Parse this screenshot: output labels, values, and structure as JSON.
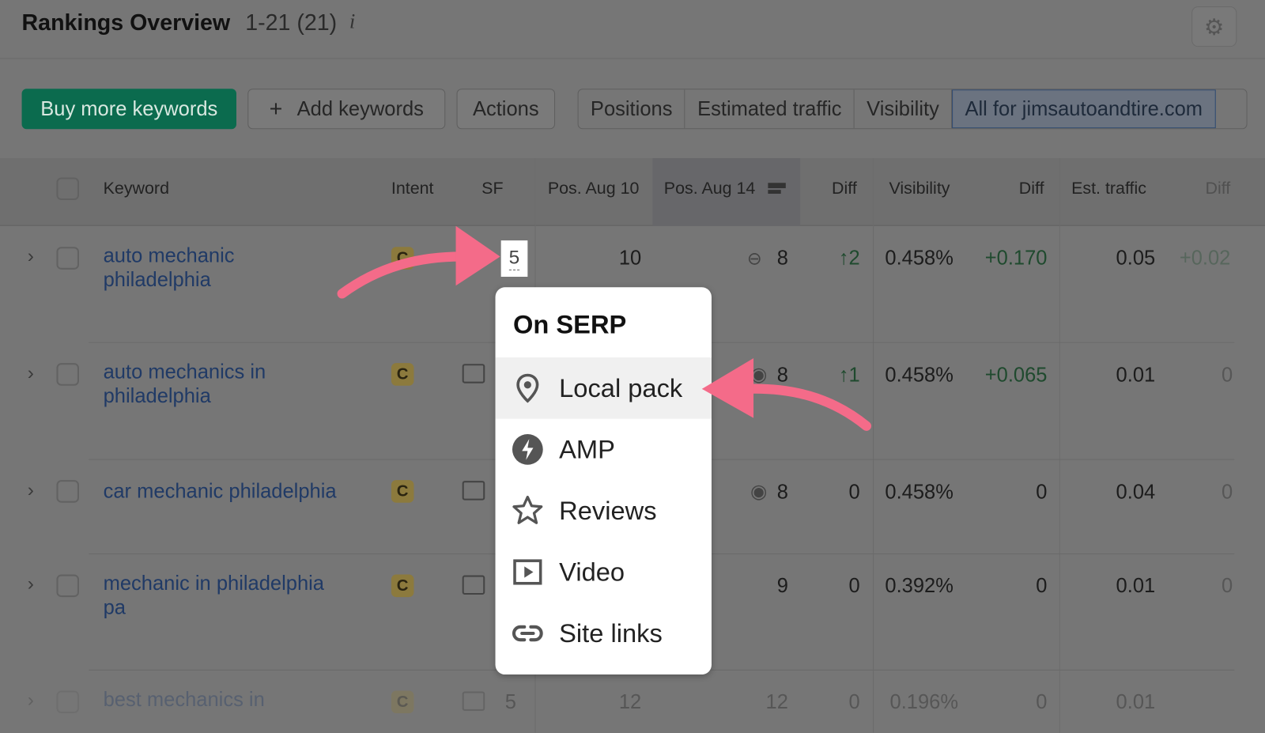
{
  "header": {
    "title": "Rankings Overview",
    "range": "1-21 (21)",
    "info_icon": "i",
    "settings_icon": "gear-icon"
  },
  "toolbar": {
    "buy": "Buy more keywords",
    "add": "Add keywords",
    "add_icon": "+",
    "actions": "Actions",
    "view_tabs": [
      "Positions",
      "Estimated traffic",
      "Visibility",
      "All for jimsautoandtire.com"
    ],
    "selected_tab": "All for jimsautoandtire.com"
  },
  "columns": {
    "keyword": "Keyword",
    "intent": "Intent",
    "sf": "SF",
    "pos1": "Pos. Aug 10",
    "pos2": "Pos. Aug 14",
    "diff": "Diff",
    "visibility": "Visibility",
    "vis_diff": "Diff",
    "traffic": "Est. traffic",
    "traffic_diff": "Diff"
  },
  "rows": [
    {
      "keyword": "auto mechanic philadelphia",
      "intent": "C",
      "sf": "5",
      "pos1": "10",
      "pos2": "8",
      "pos2_icon": "link-icon",
      "diff": "↑2",
      "visibility": "0.458%",
      "vis_diff": "+0.170",
      "traffic": "0.05",
      "traffic_diff": "+0.02"
    },
    {
      "keyword": "auto mechanics in philadelphia",
      "intent": "C",
      "pos2": "8",
      "pos2_icon": "location-pin-icon",
      "diff": "↑1",
      "visibility": "0.458%",
      "vis_diff": "+0.065",
      "traffic": "0.01",
      "traffic_diff": "0"
    },
    {
      "keyword": "car mechanic philadelphia",
      "intent": "C",
      "pos2": "8",
      "pos2_icon": "location-pin-icon",
      "diff": "0",
      "visibility": "0.458%",
      "vis_diff": "0",
      "traffic": "0.04",
      "traffic_diff": "0"
    },
    {
      "keyword": "mechanic in philadelphia pa",
      "intent": "C",
      "pos2": "9",
      "diff": "0",
      "visibility": "0.392%",
      "vis_diff": "0",
      "traffic": "0.01",
      "traffic_diff": "0"
    },
    {
      "keyword": "best mechanics in",
      "intent": "C",
      "sf": "5",
      "pos1": "12",
      "pos2": "12",
      "diff": "0",
      "visibility": "0.196%",
      "vis_diff": "0",
      "traffic": "0.01"
    }
  ],
  "popup": {
    "title": "On SERP",
    "items": [
      "Local pack",
      "AMP",
      "Reviews",
      "Video",
      "Site links"
    ],
    "highlighted": "Local pack"
  },
  "colors": {
    "accent_green": "#0b6b4e",
    "arrow": "#f46b89",
    "link": "#203a66"
  }
}
